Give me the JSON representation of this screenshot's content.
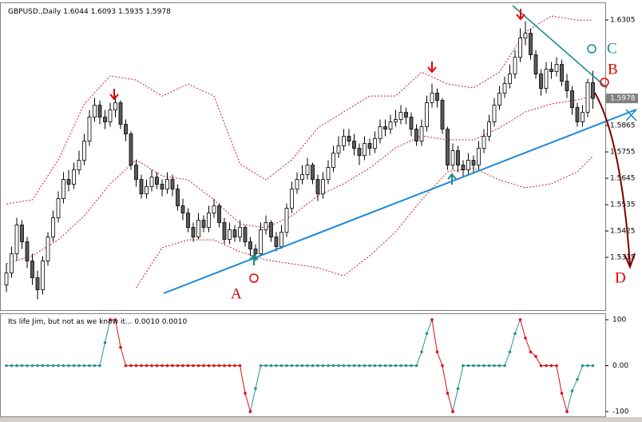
{
  "chart_data": [
    {
      "type": "candlestick",
      "symbol": "GBPUSD.,Daily",
      "header_values": [
        1.6044,
        1.6093,
        1.5935,
        1.5978
      ],
      "ylim": [
        1.5095,
        1.6372
      ],
      "yticks": [
        1.6305,
        1.5865,
        1.5755,
        1.5645,
        1.5535,
        1.5425,
        1.5315
      ],
      "bull_color": "#ffffff",
      "bear_color": "#5a5a5a",
      "annotations": [
        "A",
        "B",
        "C",
        "D"
      ],
      "candles": [
        [
          1.52,
          1.529,
          1.517,
          1.525
        ],
        [
          1.525,
          1.536,
          1.523,
          1.533
        ],
        [
          1.533,
          1.548,
          1.53,
          1.545
        ],
        [
          1.545,
          1.547,
          1.535,
          1.538
        ],
        [
          1.538,
          1.54,
          1.527,
          1.53
        ],
        [
          1.53,
          1.533,
          1.52,
          1.523
        ],
        [
          1.523,
          1.526,
          1.514,
          1.518
        ],
        [
          1.518,
          1.532,
          1.516,
          1.53
        ],
        [
          1.53,
          1.542,
          1.528,
          1.54
        ],
        [
          1.54,
          1.551,
          1.538,
          1.548
        ],
        [
          1.548,
          1.559,
          1.546,
          1.556
        ],
        [
          1.556,
          1.567,
          1.554,
          1.564
        ],
        [
          1.564,
          1.568,
          1.559,
          1.562
        ],
        [
          1.562,
          1.571,
          1.56,
          1.568
        ],
        [
          1.568,
          1.576,
          1.566,
          1.572
        ],
        [
          1.572,
          1.583,
          1.57,
          1.58
        ],
        [
          1.58,
          1.593,
          1.578,
          1.59
        ],
        [
          1.59,
          1.598,
          1.588,
          1.595
        ],
        [
          1.595,
          1.597,
          1.587,
          1.59
        ],
        [
          1.59,
          1.593,
          1.585,
          1.588
        ],
        [
          1.588,
          1.596,
          1.586,
          1.593
        ],
        [
          1.593,
          1.599,
          1.59,
          1.596
        ],
        [
          1.596,
          1.597,
          1.585,
          1.587
        ],
        [
          1.587,
          1.589,
          1.58,
          1.583
        ],
        [
          1.583,
          1.584,
          1.568,
          1.57
        ],
        [
          1.57,
          1.572,
          1.561,
          1.564
        ],
        [
          1.564,
          1.566,
          1.556,
          1.558
        ],
        [
          1.558,
          1.564,
          1.556,
          1.561
        ],
        [
          1.561,
          1.568,
          1.559,
          1.565
        ],
        [
          1.565,
          1.567,
          1.56,
          1.562
        ],
        [
          1.562,
          1.564,
          1.557,
          1.56
        ],
        [
          1.56,
          1.567,
          1.558,
          1.564
        ],
        [
          1.564,
          1.566,
          1.557,
          1.56
        ],
        [
          1.56,
          1.562,
          1.551,
          1.553
        ],
        [
          1.553,
          1.556,
          1.547,
          1.55
        ],
        [
          1.55,
          1.552,
          1.542,
          1.544
        ],
        [
          1.544,
          1.546,
          1.538,
          1.54
        ],
        [
          1.54,
          1.55,
          1.539,
          1.547
        ],
        [
          1.547,
          1.549,
          1.542,
          1.544
        ],
        [
          1.544,
          1.553,
          1.542,
          1.55
        ],
        [
          1.55,
          1.556,
          1.548,
          1.553
        ],
        [
          1.553,
          1.554,
          1.544,
          1.546
        ],
        [
          1.546,
          1.548,
          1.537,
          1.539
        ],
        [
          1.539,
          1.546,
          1.537,
          1.543
        ],
        [
          1.543,
          1.545,
          1.538,
          1.54
        ],
        [
          1.54,
          1.547,
          1.538,
          1.544
        ],
        [
          1.544,
          1.545,
          1.536,
          1.538
        ],
        [
          1.538,
          1.54,
          1.532,
          1.535
        ],
        [
          1.535,
          1.537,
          1.53,
          1.533
        ],
        [
          1.533,
          1.546,
          1.532,
          1.543
        ],
        [
          1.543,
          1.549,
          1.541,
          1.546
        ],
        [
          1.546,
          1.547,
          1.538,
          1.54
        ],
        [
          1.54,
          1.542,
          1.534,
          1.536
        ],
        [
          1.536,
          1.545,
          1.535,
          1.542
        ],
        [
          1.542,
          1.554,
          1.54,
          1.552
        ],
        [
          1.552,
          1.563,
          1.55,
          1.56
        ],
        [
          1.56,
          1.567,
          1.558,
          1.564
        ],
        [
          1.564,
          1.57,
          1.562,
          1.566
        ],
        [
          1.566,
          1.573,
          1.564,
          1.57
        ],
        [
          1.57,
          1.571,
          1.562,
          1.564
        ],
        [
          1.564,
          1.566,
          1.555,
          1.558
        ],
        [
          1.558,
          1.567,
          1.556,
          1.564
        ],
        [
          1.564,
          1.572,
          1.562,
          1.569
        ],
        [
          1.569,
          1.578,
          1.567,
          1.575
        ],
        [
          1.575,
          1.582,
          1.573,
          1.578
        ],
        [
          1.578,
          1.585,
          1.576,
          1.582
        ],
        [
          1.582,
          1.585,
          1.578,
          1.58
        ],
        [
          1.58,
          1.583,
          1.574,
          1.577
        ],
        [
          1.577,
          1.579,
          1.57,
          1.574
        ],
        [
          1.574,
          1.582,
          1.572,
          1.579
        ],
        [
          1.579,
          1.581,
          1.574,
          1.577
        ],
        [
          1.577,
          1.584,
          1.575,
          1.581
        ],
        [
          1.581,
          1.589,
          1.579,
          1.586
        ],
        [
          1.586,
          1.589,
          1.582,
          1.585
        ],
        [
          1.585,
          1.591,
          1.583,
          1.588
        ],
        [
          1.588,
          1.593,
          1.586,
          1.589
        ],
        [
          1.589,
          1.595,
          1.587,
          1.592
        ],
        [
          1.592,
          1.594,
          1.587,
          1.59
        ],
        [
          1.59,
          1.592,
          1.582,
          1.585
        ],
        [
          1.585,
          1.587,
          1.578,
          1.58
        ],
        [
          1.58,
          1.589,
          1.578,
          1.586
        ],
        [
          1.586,
          1.599,
          1.584,
          1.596
        ],
        [
          1.596,
          1.604,
          1.594,
          1.6
        ],
        [
          1.6,
          1.602,
          1.594,
          1.597
        ],
        [
          1.597,
          1.598,
          1.583,
          1.585
        ],
        [
          1.585,
          1.586,
          1.568,
          1.57
        ],
        [
          1.57,
          1.579,
          1.568,
          1.576
        ],
        [
          1.576,
          1.578,
          1.567,
          1.57
        ],
        [
          1.57,
          1.572,
          1.565,
          1.568
        ],
        [
          1.568,
          1.575,
          1.566,
          1.572
        ],
        [
          1.572,
          1.574,
          1.567,
          1.57
        ],
        [
          1.57,
          1.58,
          1.568,
          1.577
        ],
        [
          1.577,
          1.585,
          1.575,
          1.582
        ],
        [
          1.582,
          1.591,
          1.58,
          1.588
        ],
        [
          1.588,
          1.598,
          1.586,
          1.595
        ],
        [
          1.595,
          1.603,
          1.593,
          1.6
        ],
        [
          1.6,
          1.607,
          1.598,
          1.604
        ],
        [
          1.604,
          1.612,
          1.602,
          1.608
        ],
        [
          1.608,
          1.618,
          1.606,
          1.615
        ],
        [
          1.615,
          1.627,
          1.613,
          1.623
        ],
        [
          1.623,
          1.63,
          1.62,
          1.625
        ],
        [
          1.625,
          1.627,
          1.614,
          1.616
        ],
        [
          1.616,
          1.618,
          1.606,
          1.608
        ],
        [
          1.608,
          1.61,
          1.599,
          1.602
        ],
        [
          1.602,
          1.613,
          1.6,
          1.61
        ],
        [
          1.61,
          1.613,
          1.606,
          1.609
        ],
        [
          1.609,
          1.615,
          1.607,
          1.612
        ],
        [
          1.612,
          1.614,
          1.603,
          1.605
        ],
        [
          1.605,
          1.608,
          1.598,
          1.601
        ],
        [
          1.601,
          1.603,
          1.591,
          1.594
        ],
        [
          1.594,
          1.596,
          1.586,
          1.588
        ],
        [
          1.588,
          1.595,
          1.586,
          1.592
        ],
        [
          1.592,
          1.606,
          1.59,
          1.6044
        ],
        [
          1.6044,
          1.6093,
          1.5935,
          1.5978
        ]
      ],
      "bands": {
        "x": [
          0,
          5,
          10,
          15,
          20,
          25,
          30,
          35,
          40,
          45,
          50,
          55,
          60,
          65,
          70,
          75,
          80,
          85,
          90,
          95,
          100,
          105,
          110,
          113
        ],
        "series": [
          {
            "color": "#d42020",
            "values": [
              1.5538,
              1.5555,
              1.5722,
              1.5955,
              1.6072,
              1.6055,
              1.5988,
              1.6038,
              1.5988,
              1.5705,
              1.5638,
              1.5722,
              1.5855,
              1.5922,
              1.5988,
              1.5988,
              1.6088,
              1.6038,
              1.6022,
              1.6088,
              1.6255,
              1.6322,
              1.6305,
              1.6305
            ]
          },
          {
            "color": "#d42020",
            "values": [
              1.5288,
              1.5322,
              1.5388,
              1.5488,
              1.5622,
              1.5722,
              1.5655,
              1.5638,
              1.5555,
              1.5455,
              1.5438,
              1.5488,
              1.5572,
              1.5622,
              1.5688,
              1.5772,
              1.5822,
              1.5805,
              1.5805,
              1.5855,
              1.5922,
              1.5955,
              1.5972,
              1.5988
            ]
          },
          {
            "color": "#d42020",
            "values": [
              null,
              null,
              null,
              null,
              null,
              1.5188,
              1.5355,
              1.5388,
              1.5388,
              1.5338,
              1.5305,
              1.5288,
              1.5272,
              1.5238,
              1.5322,
              1.5422,
              1.5555,
              1.5672,
              1.5688,
              1.5638,
              1.5605,
              1.5622,
              1.5672,
              1.5738
            ]
          }
        ]
      }
    },
    {
      "type": "line",
      "title": "Its life Jim, but not as we know it...",
      "params": [
        "0.0010",
        "0.0010"
      ],
      "ylim": [
        -112.2,
        113.9
      ],
      "yticks": [
        100,
        {
          "value": 0,
          "label": "0.00"
        },
        -100
      ],
      "series": [
        {
          "color": "#2a9090",
          "values": [
            0,
            0,
            0,
            0,
            0,
            0,
            0,
            0,
            0,
            0,
            0,
            0,
            0,
            0,
            0,
            0,
            0,
            0,
            0,
            50,
            100,
            null,
            null,
            null,
            null,
            null,
            null,
            null,
            null,
            null,
            null,
            null,
            null,
            null,
            null,
            null,
            null,
            null,
            null,
            null,
            null,
            null,
            null,
            null,
            null,
            null,
            null,
            -100,
            -50,
            0,
            0,
            0,
            0,
            0,
            0,
            0,
            0,
            0,
            0,
            0,
            0,
            0,
            0,
            0,
            0,
            0,
            0,
            0,
            0,
            0,
            0,
            0,
            0,
            0,
            0,
            0,
            0,
            0,
            0,
            0,
            30,
            70,
            100,
            null,
            null,
            null,
            -100,
            -50,
            0,
            0,
            0,
            0,
            0,
            0,
            0,
            0,
            0,
            30,
            70,
            100,
            null,
            null,
            null,
            null,
            null,
            null,
            null,
            null,
            -100,
            -55,
            -30,
            0,
            0,
            0
          ]
        },
        {
          "color": "#e01010",
          "values": [
            null,
            null,
            null,
            null,
            null,
            null,
            null,
            null,
            null,
            null,
            null,
            null,
            null,
            null,
            null,
            null,
            null,
            null,
            null,
            null,
            100,
            100,
            40,
            0,
            0,
            0,
            0,
            0,
            0,
            0,
            0,
            0,
            0,
            0,
            0,
            0,
            0,
            0,
            0,
            0,
            0,
            0,
            0,
            0,
            0,
            0,
            -60,
            -100,
            null,
            null,
            null,
            null,
            null,
            null,
            null,
            null,
            null,
            null,
            null,
            null,
            null,
            null,
            null,
            null,
            null,
            null,
            null,
            null,
            null,
            null,
            null,
            null,
            null,
            null,
            null,
            null,
            null,
            null,
            null,
            null,
            null,
            null,
            100,
            30,
            0,
            -60,
            -100,
            null,
            null,
            null,
            null,
            null,
            null,
            null,
            null,
            null,
            null,
            null,
            null,
            100,
            60,
            30,
            20,
            0,
            0,
            0,
            0,
            -60,
            -100,
            null,
            null,
            null,
            null,
            null
          ]
        }
      ]
    }
  ]
}
